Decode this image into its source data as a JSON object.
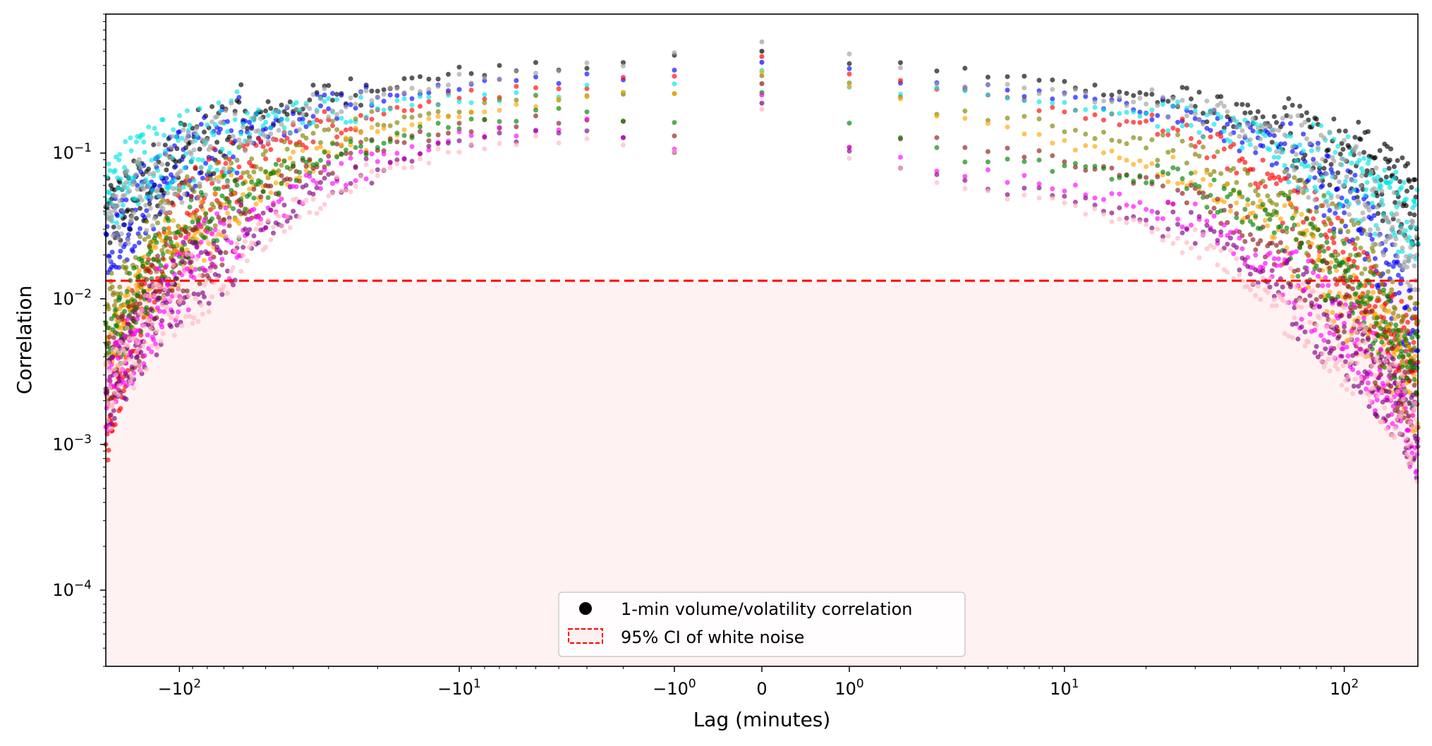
{
  "chart_data": {
    "type": "scatter",
    "title": "",
    "xlabel": "Lag (minutes)",
    "ylabel": "Correlation",
    "xscale": "symlog",
    "xlim": [
      -180,
      180
    ],
    "yscale": "log",
    "ylim": [
      3e-05,
      0.9
    ],
    "x_ticks": [
      {
        "value": -100,
        "base": "−10",
        "exp": "2"
      },
      {
        "value": -10,
        "base": "−10",
        "exp": "1"
      },
      {
        "value": -1,
        "base": "−10",
        "exp": "0"
      },
      {
        "value": 0,
        "base": "0",
        "exp": ""
      },
      {
        "value": 1,
        "base": "10",
        "exp": "0"
      },
      {
        "value": 10,
        "base": "10",
        "exp": "1"
      },
      {
        "value": 100,
        "base": "10",
        "exp": "2"
      }
    ],
    "y_ticks": [
      {
        "value": 0.1,
        "base": "10",
        "exp": "−1"
      },
      {
        "value": 0.01,
        "base": "10",
        "exp": "−2"
      },
      {
        "value": 0.001,
        "base": "10",
        "exp": "−3"
      },
      {
        "value": 0.0001,
        "base": "10",
        "exp": "−4"
      }
    ],
    "threshold": 0.0133,
    "legend": {
      "placement": "lower-center",
      "entries": [
        {
          "label": "1-min volume/volatility correlation",
          "marker": "dot",
          "color": "#000000"
        },
        {
          "label": "95% CI of white noise",
          "marker": "dashed-box",
          "color": "#ff0000"
        }
      ]
    },
    "series": [
      {
        "color": "#000000",
        "pos": [
          [
            0,
            0.5
          ],
          [
            1,
            0.43
          ],
          [
            3,
            0.38
          ],
          [
            10,
            0.3
          ],
          [
            30,
            0.22
          ],
          [
            60,
            0.14
          ],
          [
            110,
            0.09
          ],
          [
            150,
            0.055
          ],
          [
            180,
            0.04
          ]
        ],
        "neg": [
          [
            1,
            0.43
          ],
          [
            3,
            0.4
          ],
          [
            10,
            0.36
          ],
          [
            30,
            0.25
          ],
          [
            60,
            0.16
          ],
          [
            110,
            0.08
          ],
          [
            150,
            0.045
          ],
          [
            180,
            0.035
          ]
        ]
      },
      {
        "color": "#0000ff",
        "pos": [
          [
            0,
            0.42
          ],
          [
            1,
            0.36
          ],
          [
            3,
            0.3
          ],
          [
            10,
            0.24
          ],
          [
            30,
            0.18
          ],
          [
            60,
            0.1
          ],
          [
            110,
            0.04
          ],
          [
            150,
            0.012
          ],
          [
            180,
            0.006
          ]
        ],
        "neg": [
          [
            1,
            0.36
          ],
          [
            3,
            0.33
          ],
          [
            10,
            0.29
          ],
          [
            30,
            0.21
          ],
          [
            60,
            0.14
          ],
          [
            110,
            0.07
          ],
          [
            150,
            0.035
          ],
          [
            180,
            0.025
          ]
        ]
      },
      {
        "color": "#ff0000",
        "pos": [
          [
            0,
            0.46
          ],
          [
            1,
            0.32
          ],
          [
            3,
            0.27
          ],
          [
            10,
            0.2
          ],
          [
            30,
            0.13
          ],
          [
            60,
            0.06
          ],
          [
            110,
            0.015
          ],
          [
            150,
            0.006
          ],
          [
            180,
            0.004
          ]
        ],
        "neg": [
          [
            1,
            0.32
          ],
          [
            3,
            0.29
          ],
          [
            10,
            0.25
          ],
          [
            30,
            0.16
          ],
          [
            60,
            0.09
          ],
          [
            110,
            0.03
          ],
          [
            150,
            0.006
          ],
          [
            180,
            0.001
          ]
        ]
      },
      {
        "color": "#00e5e5",
        "pos": [
          [
            0,
            0.37
          ],
          [
            1,
            0.3
          ],
          [
            3,
            0.26
          ],
          [
            10,
            0.22
          ],
          [
            30,
            0.17
          ],
          [
            60,
            0.11
          ],
          [
            110,
            0.065
          ],
          [
            150,
            0.04
          ],
          [
            180,
            0.03
          ]
        ],
        "neg": [
          [
            1,
            0.3
          ],
          [
            3,
            0.27
          ],
          [
            10,
            0.24
          ],
          [
            30,
            0.2
          ],
          [
            60,
            0.15
          ],
          [
            110,
            0.1
          ],
          [
            150,
            0.07
          ],
          [
            180,
            0.05
          ]
        ]
      },
      {
        "color": "#808000",
        "pos": [
          [
            0,
            0.34
          ],
          [
            1,
            0.28
          ],
          [
            3,
            0.2
          ],
          [
            10,
            0.15
          ],
          [
            30,
            0.1
          ],
          [
            60,
            0.045
          ],
          [
            110,
            0.02
          ],
          [
            150,
            0.008
          ],
          [
            180,
            0.005
          ]
        ],
        "neg": [
          [
            1,
            0.28
          ],
          [
            3,
            0.25
          ],
          [
            10,
            0.2
          ],
          [
            30,
            0.13
          ],
          [
            60,
            0.07
          ],
          [
            110,
            0.03
          ],
          [
            150,
            0.012
          ],
          [
            180,
            0.007
          ]
        ]
      },
      {
        "color": "#ffa500",
        "pos": [
          [
            0,
            0.36
          ],
          [
            1,
            0.27
          ],
          [
            3,
            0.19
          ],
          [
            10,
            0.12
          ],
          [
            30,
            0.07
          ],
          [
            60,
            0.03
          ],
          [
            110,
            0.008
          ],
          [
            150,
            0.004
          ],
          [
            180,
            0.002
          ]
        ],
        "neg": [
          [
            1,
            0.27
          ],
          [
            3,
            0.24
          ],
          [
            10,
            0.18
          ],
          [
            30,
            0.11
          ],
          [
            60,
            0.05
          ],
          [
            110,
            0.02
          ],
          [
            150,
            0.008
          ],
          [
            180,
            0.003
          ]
        ]
      },
      {
        "color": "#8b1a1a",
        "pos": [
          [
            0,
            0.3
          ],
          [
            1,
            0.12
          ],
          [
            3,
            0.12
          ],
          [
            10,
            0.09
          ],
          [
            30,
            0.05
          ],
          [
            60,
            0.02
          ],
          [
            110,
            0.006
          ],
          [
            150,
            0.003
          ],
          [
            180,
            0.002
          ]
        ],
        "neg": [
          [
            1,
            0.12
          ],
          [
            3,
            0.18
          ],
          [
            10,
            0.15
          ],
          [
            30,
            0.09
          ],
          [
            60,
            0.04
          ],
          [
            110,
            0.015
          ],
          [
            150,
            0.005
          ],
          [
            180,
            0.003
          ]
        ]
      },
      {
        "color": "#008000",
        "pos": [
          [
            0,
            0.26
          ],
          [
            1,
            0.15
          ],
          [
            3,
            0.1
          ],
          [
            10,
            0.08
          ],
          [
            30,
            0.06
          ],
          [
            60,
            0.03
          ],
          [
            110,
            0.012
          ],
          [
            150,
            0.005
          ],
          [
            180,
            0.003
          ]
        ],
        "neg": [
          [
            1,
            0.15
          ],
          [
            3,
            0.2
          ],
          [
            10,
            0.16
          ],
          [
            30,
            0.1
          ],
          [
            60,
            0.05
          ],
          [
            110,
            0.02
          ],
          [
            150,
            0.008
          ],
          [
            180,
            0.004
          ]
        ]
      },
      {
        "color": "#ff00ff",
        "pos": [
          [
            0,
            0.25
          ],
          [
            1,
            0.11
          ],
          [
            3,
            0.08
          ],
          [
            10,
            0.06
          ],
          [
            30,
            0.035
          ],
          [
            60,
            0.015
          ],
          [
            110,
            0.005
          ],
          [
            150,
            0.002
          ],
          [
            180,
            0.001
          ]
        ],
        "neg": [
          [
            1,
            0.11
          ],
          [
            3,
            0.16
          ],
          [
            10,
            0.13
          ],
          [
            30,
            0.07
          ],
          [
            60,
            0.03
          ],
          [
            110,
            0.012
          ],
          [
            150,
            0.004
          ],
          [
            180,
            0.002
          ]
        ]
      },
      {
        "color": "#800080",
        "pos": [
          [
            0,
            0.22
          ],
          [
            1,
            0.11
          ],
          [
            3,
            0.065
          ],
          [
            10,
            0.05
          ],
          [
            30,
            0.03
          ],
          [
            60,
            0.012
          ],
          [
            110,
            0.004
          ],
          [
            150,
            0.002
          ],
          [
            180,
            0.001
          ]
        ],
        "neg": [
          [
            1,
            0.11
          ],
          [
            3,
            0.14
          ],
          [
            10,
            0.12
          ],
          [
            30,
            0.06
          ],
          [
            60,
            0.025
          ],
          [
            110,
            0.01
          ],
          [
            150,
            0.004
          ],
          [
            180,
            0.002
          ]
        ]
      },
      {
        "color": "#ffb6c1",
        "pos": [
          [
            0,
            0.2
          ],
          [
            1,
            0.1
          ],
          [
            3,
            0.06
          ],
          [
            10,
            0.045
          ],
          [
            30,
            0.025
          ],
          [
            60,
            0.01
          ],
          [
            110,
            0.004
          ],
          [
            150,
            0.002
          ],
          [
            180,
            0.001
          ]
        ],
        "neg": [
          [
            1,
            0.1
          ],
          [
            3,
            0.13
          ],
          [
            10,
            0.11
          ],
          [
            30,
            0.055
          ],
          [
            60,
            0.022
          ],
          [
            110,
            0.009
          ],
          [
            150,
            0.004
          ],
          [
            180,
            0.002
          ]
        ]
      },
      {
        "color": "#a0a0a0",
        "pos": [
          [
            0,
            0.58
          ],
          [
            1,
            0.45
          ],
          [
            3,
            0.32
          ],
          [
            10,
            0.26
          ],
          [
            30,
            0.2
          ],
          [
            60,
            0.12
          ],
          [
            110,
            0.06
          ],
          [
            150,
            0.03
          ],
          [
            180,
            0.02
          ]
        ],
        "neg": [
          [
            1,
            0.45
          ],
          [
            3,
            0.38
          ],
          [
            10,
            0.32
          ],
          [
            30,
            0.22
          ],
          [
            60,
            0.13
          ],
          [
            110,
            0.07
          ],
          [
            150,
            0.045
          ],
          [
            180,
            0.03
          ]
        ]
      }
    ]
  }
}
